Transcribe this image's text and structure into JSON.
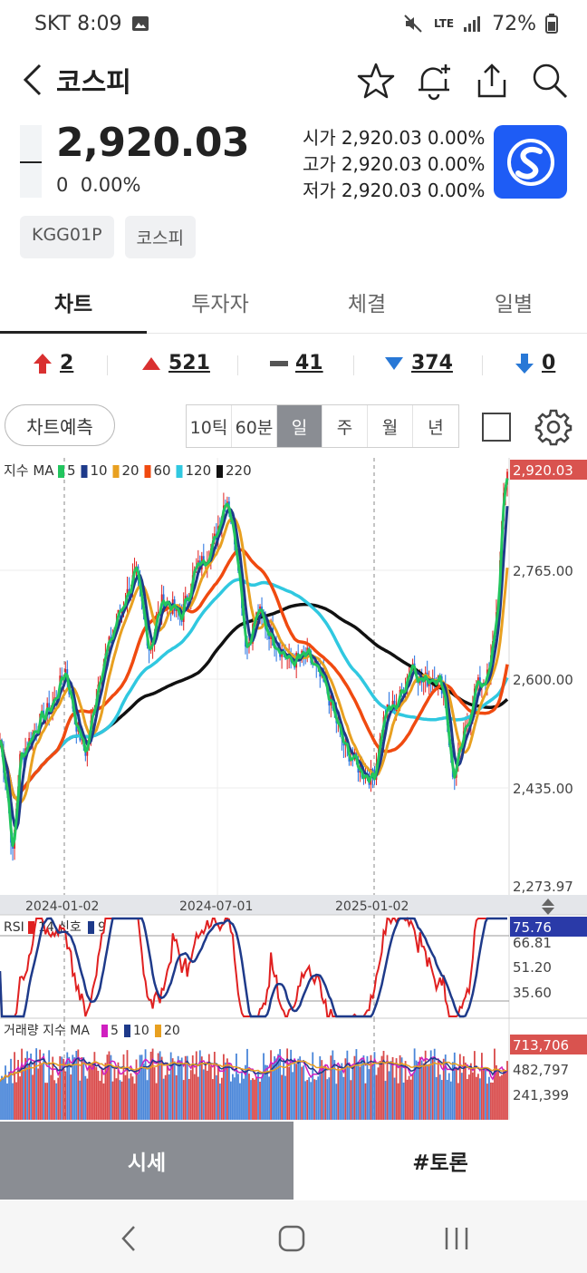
{
  "status": {
    "carrier_time": "SKT 8:09",
    "network": "LTE",
    "battery": "72%"
  },
  "header": {
    "title": "코스피"
  },
  "price": {
    "current": "2,920.03",
    "change": "0",
    "change_pct": "0.00%",
    "open_label": "시가",
    "open_value": "2,920.03",
    "open_pct": "0.00%",
    "high_label": "고가",
    "high_value": "2,920.03",
    "high_pct": "0.00%",
    "low_label": "저가",
    "low_value": "2,920.03",
    "low_pct": "0.00%"
  },
  "tags": [
    "KGG01P",
    "코스피"
  ],
  "tabs": [
    "차트",
    "투자자",
    "체결",
    "일별"
  ],
  "breadth": {
    "upper_limit": "2",
    "up": "521",
    "flat": "41",
    "down": "374",
    "lower_limit": "0"
  },
  "toolbar": {
    "forecast": "차트예측",
    "periods": [
      "10틱",
      "60분",
      "일",
      "주",
      "월",
      "년"
    ]
  },
  "chart_data": {
    "type": "line",
    "ma_label": "지수 MA",
    "ma_periods": [
      "5",
      "10",
      "20",
      "60",
      "120",
      "220"
    ],
    "ma_colors": [
      "#22c55e",
      "#1e3a8a",
      "#e8a020",
      "#f04a10",
      "#30c8e0",
      "#111111"
    ],
    "price_axis": [
      "2,920.03",
      "2,765.00",
      "2,600.00",
      "2,435.00",
      "2,273.97"
    ],
    "ylim": [
      2273.97,
      2920.03
    ],
    "date_axis": [
      "2024-01-02",
      "2024-07-01",
      "2025-01-02"
    ],
    "rsi_label": "RSI",
    "rsi_period": "14",
    "rsi_signal_label": "신호",
    "rsi_signal": "9",
    "rsi_axis": [
      "75.76",
      "66.81",
      "51.20",
      "35.60"
    ],
    "volume_label": "거래량 지수 MA",
    "volume_ma": [
      "5",
      "10",
      "20"
    ],
    "volume_axis": [
      "713,706",
      "482,797",
      "241,399"
    ]
  },
  "bottom_tabs": {
    "quote": "시세",
    "talk": "#토론"
  }
}
